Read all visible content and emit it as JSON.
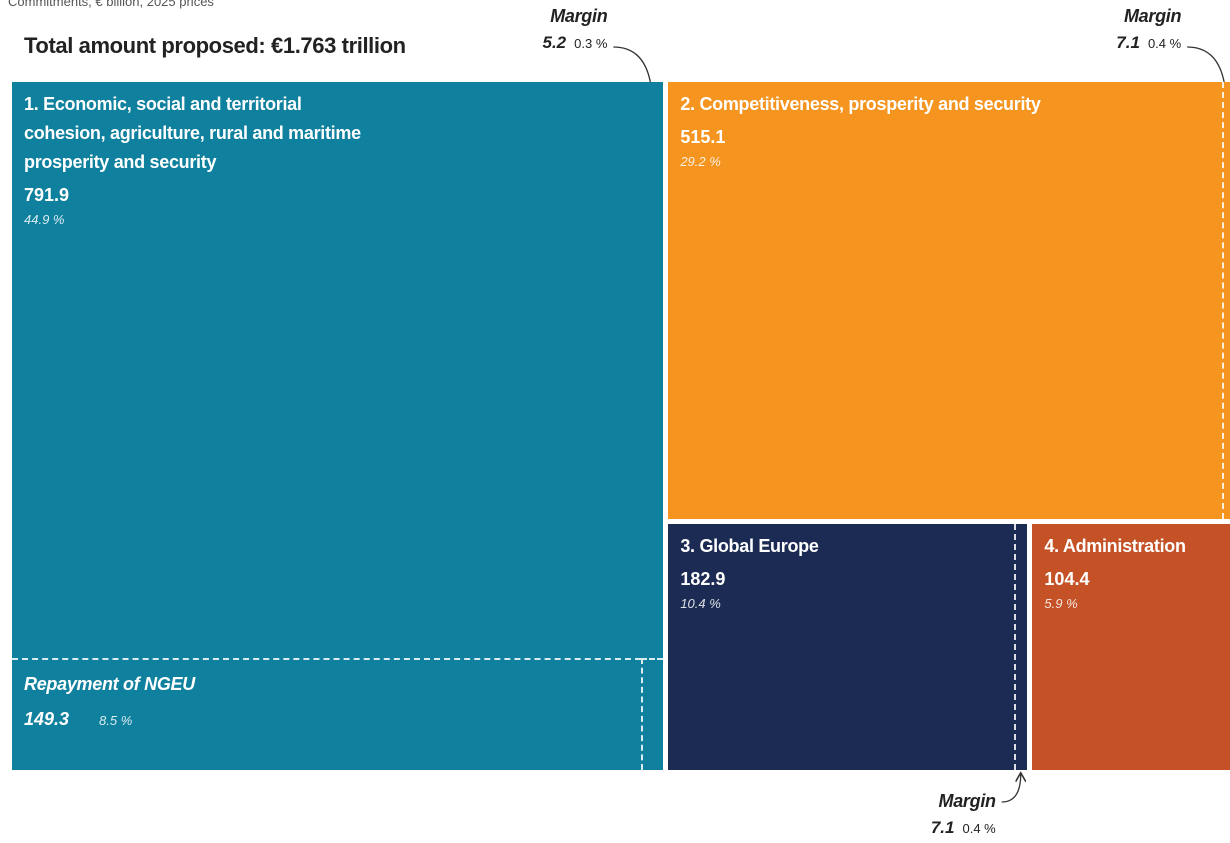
{
  "chart_data": {
    "type": "treemap",
    "subtitle": "Commitments, € billion, 2025 prices",
    "title": "Total amount proposed: €1.763 trillion",
    "items": [
      {
        "name": "1. Economic, social and territorial cohesion, agriculture, rural and maritime prosperity and security",
        "value": 791.9,
        "share": 44.9,
        "share_label": "44.9 %",
        "color": "#0f809d",
        "parts": [
          {
            "name": "Repayment of NGEU",
            "value": 149.3,
            "share": 8.5,
            "share_label": "8.5 %"
          },
          {
            "name": "Margin",
            "value": 5.2,
            "share": 0.3,
            "share_label": "0.3 %"
          }
        ]
      },
      {
        "name": "2. Competitiveness, prosperity and security",
        "value": 515.1,
        "share": 29.2,
        "share_label": "29.2 %",
        "color": "#f5941f",
        "parts": [
          {
            "name": "Margin",
            "value": 7.1,
            "share": 0.4,
            "share_label": "0.4 %"
          }
        ]
      },
      {
        "name": "3. Global Europe",
        "value": 182.9,
        "share": 10.4,
        "share_label": "10.4 %",
        "color": "#1c2b53",
        "parts": [
          {
            "name": "Margin",
            "value": 7.1,
            "share": 0.4,
            "share_label": "0.4 %"
          }
        ]
      },
      {
        "name": "4. Administration",
        "value": 104.4,
        "share": 5.9,
        "share_label": "5.9 %",
        "color": "#c45226",
        "parts": []
      }
    ]
  }
}
